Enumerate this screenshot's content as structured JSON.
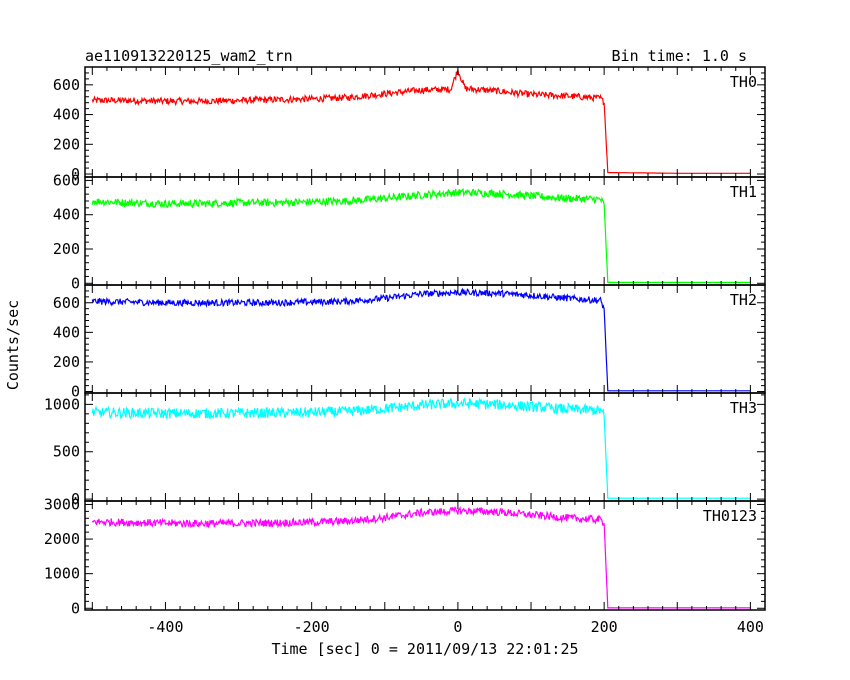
{
  "chart_data": {
    "type": "line",
    "title_left": "ae110913220125_wam2_trn",
    "title_right": "Bin time: 1.0 s",
    "xlabel": "Time [sec] 0 = 2011/09/13 22:01:25",
    "ylabel": "Counts/sec",
    "xlim": [
      -510,
      420
    ],
    "x_ticks": [
      -400,
      -200,
      0,
      200,
      400
    ],
    "grid": false,
    "panels": [
      {
        "name": "TH0",
        "color": "#ff0000",
        "ylim": [
          -20,
          720
        ],
        "y_ticks": [
          0,
          200,
          400,
          600
        ],
        "series": {
          "x": [
            -500,
            -450,
            -400,
            -350,
            -300,
            -250,
            -200,
            -150,
            -100,
            -50,
            -10,
            0,
            10,
            50,
            100,
            150,
            195,
            200,
            205,
            300,
            400
          ],
          "y": [
            495,
            495,
            490,
            490,
            495,
            500,
            505,
            515,
            540,
            565,
            570,
            700,
            575,
            560,
            535,
            525,
            510,
            480,
            10,
            5,
            5
          ]
        }
      },
      {
        "name": "TH1",
        "color": "#00ff00",
        "ylim": [
          -10,
          620
        ],
        "y_ticks": [
          0,
          200,
          400,
          600
        ],
        "series": {
          "x": [
            -500,
            -450,
            -400,
            -350,
            -300,
            -250,
            -200,
            -150,
            -100,
            -50,
            0,
            50,
            100,
            150,
            195,
            200,
            205,
            300,
            400
          ],
          "y": [
            480,
            470,
            465,
            465,
            470,
            470,
            475,
            480,
            495,
            515,
            530,
            525,
            510,
            495,
            490,
            460,
            5,
            5,
            5
          ]
        }
      },
      {
        "name": "TH2",
        "color": "#0000ff",
        "ylim": [
          -10,
          720
        ],
        "y_ticks": [
          0,
          200,
          400,
          600
        ],
        "series": {
          "x": [
            -500,
            -450,
            -400,
            -350,
            -300,
            -250,
            -200,
            -150,
            -100,
            -50,
            0,
            50,
            100,
            150,
            195,
            200,
            205,
            300,
            400
          ],
          "y": [
            610,
            605,
            600,
            600,
            600,
            600,
            605,
            610,
            630,
            660,
            670,
            665,
            650,
            630,
            615,
            560,
            5,
            5,
            5
          ]
        }
      },
      {
        "name": "TH3",
        "color": "#00ffff",
        "ylim": [
          -20,
          1120
        ],
        "y_ticks": [
          0,
          500,
          1000
        ],
        "series": {
          "x": [
            -500,
            -450,
            -400,
            -350,
            -300,
            -250,
            -200,
            -150,
            -100,
            -50,
            0,
            50,
            100,
            150,
            195,
            200,
            205,
            300,
            400
          ],
          "y": [
            915,
            910,
            905,
            905,
            905,
            910,
            915,
            925,
            955,
            990,
            1010,
            1000,
            975,
            950,
            935,
            880,
            10,
            10,
            10
          ]
        }
      },
      {
        "name": "TH0123",
        "color": "#ff00ff",
        "ylim": [
          -50,
          3100
        ],
        "y_ticks": [
          0,
          1000,
          2000,
          3000
        ],
        "series": {
          "x": [
            -500,
            -450,
            -400,
            -350,
            -300,
            -250,
            -200,
            -150,
            -100,
            -50,
            0,
            50,
            100,
            150,
            195,
            200,
            205,
            300,
            400
          ],
          "y": [
            2500,
            2480,
            2460,
            2450,
            2455,
            2470,
            2485,
            2520,
            2620,
            2760,
            2820,
            2790,
            2700,
            2610,
            2560,
            2460,
            10,
            10,
            10
          ]
        }
      }
    ]
  }
}
